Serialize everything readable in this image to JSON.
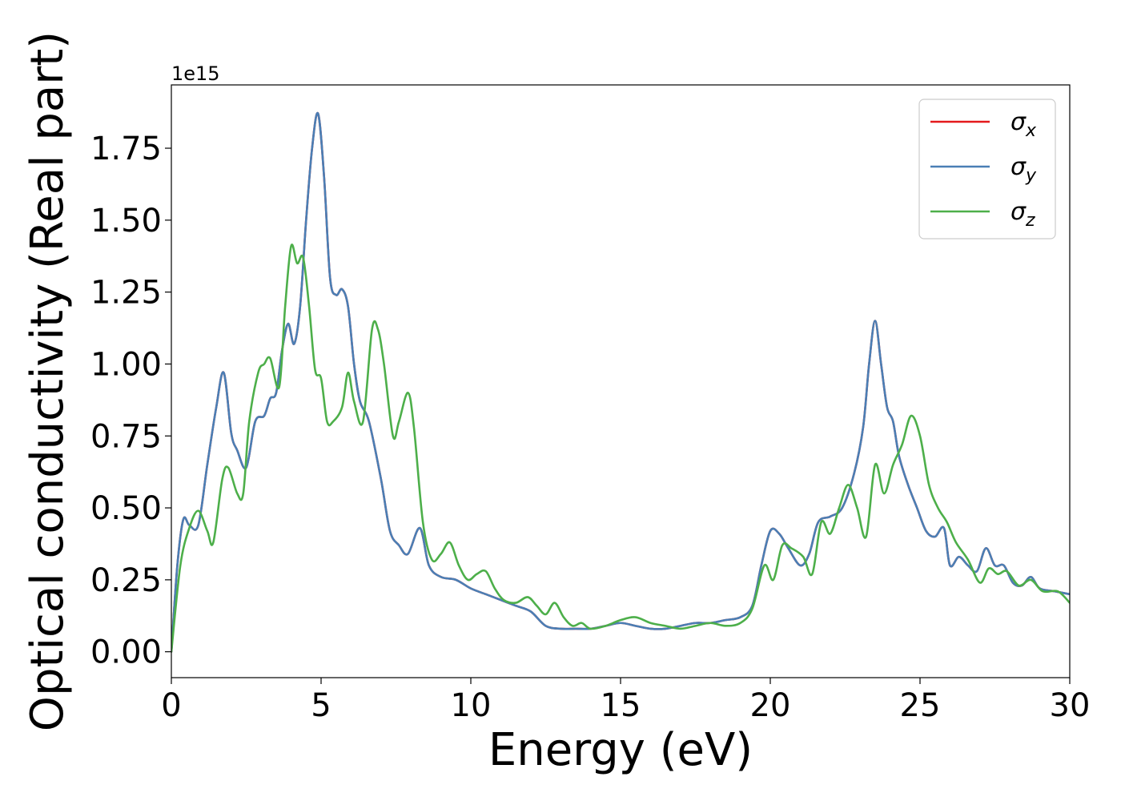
{
  "chart_data": {
    "type": "line",
    "xlabel": "Energy (eV)",
    "ylabel": "Optical conductivity (Real part)",
    "y_offset_label": "1e15",
    "xlim": [
      0,
      30
    ],
    "ylim": [
      -0.09,
      1.97
    ],
    "x_ticks": [
      0,
      5,
      10,
      15,
      20,
      25,
      30
    ],
    "x_tick_labels": [
      "0",
      "5",
      "10",
      "15",
      "20",
      "25",
      "30"
    ],
    "y_ticks": [
      0,
      0.25,
      0.5,
      0.75,
      1.0,
      1.25,
      1.5,
      1.75
    ],
    "y_tick_labels": [
      "0.00",
      "0.25",
      "0.50",
      "0.75",
      "1.00",
      "1.25",
      "1.50",
      "1.75"
    ],
    "grid": false,
    "legend_position": "top-right",
    "series": [
      {
        "name": "σx",
        "label_base": "σ",
        "label_sub": "x",
        "color": "#e41a1c",
        "x": [
          0,
          0.2,
          0.4,
          0.6,
          0.9,
          1.2,
          1.5,
          1.75,
          2.0,
          2.2,
          2.5,
          2.8,
          3.1,
          3.3,
          3.5,
          3.7,
          3.9,
          4.1,
          4.3,
          4.5,
          4.7,
          4.9,
          5.1,
          5.3,
          5.5,
          5.7,
          5.9,
          6.1,
          6.3,
          6.6,
          7.0,
          7.3,
          7.6,
          7.9,
          8.3,
          8.6,
          9.0,
          9.5,
          10.0,
          10.5,
          11.0,
          11.5,
          12.0,
          12.5,
          13.0,
          13.5,
          14.0,
          14.5,
          15.0,
          15.5,
          16.0,
          16.5,
          17.0,
          17.5,
          18.0,
          18.5,
          19.0,
          19.4,
          19.7,
          20.0,
          20.3,
          20.6,
          21.0,
          21.3,
          21.6,
          22.0,
          22.4,
          22.8,
          23.1,
          23.3,
          23.5,
          23.7,
          23.9,
          24.1,
          24.3,
          24.6,
          24.9,
          25.2,
          25.5,
          25.8,
          26.0,
          26.3,
          26.6,
          26.9,
          27.2,
          27.5,
          27.8,
          28.1,
          28.4,
          28.7,
          29.0,
          29.5,
          30.0
        ],
        "values": [
          0.0,
          0.3,
          0.46,
          0.44,
          0.44,
          0.65,
          0.85,
          0.97,
          0.76,
          0.7,
          0.64,
          0.8,
          0.82,
          0.88,
          0.9,
          1.05,
          1.14,
          1.07,
          1.2,
          1.5,
          1.75,
          1.87,
          1.65,
          1.3,
          1.24,
          1.26,
          1.2,
          1.0,
          0.87,
          0.8,
          0.6,
          0.42,
          0.37,
          0.34,
          0.43,
          0.3,
          0.26,
          0.25,
          0.22,
          0.2,
          0.18,
          0.16,
          0.14,
          0.09,
          0.08,
          0.08,
          0.08,
          0.09,
          0.1,
          0.09,
          0.08,
          0.08,
          0.09,
          0.1,
          0.1,
          0.11,
          0.12,
          0.16,
          0.3,
          0.42,
          0.41,
          0.36,
          0.3,
          0.34,
          0.45,
          0.47,
          0.5,
          0.62,
          0.78,
          1.0,
          1.15,
          1.0,
          0.85,
          0.8,
          0.68,
          0.58,
          0.5,
          0.42,
          0.4,
          0.43,
          0.3,
          0.33,
          0.3,
          0.28,
          0.36,
          0.3,
          0.3,
          0.24,
          0.23,
          0.26,
          0.22,
          0.21,
          0.2
        ]
      },
      {
        "name": "σy",
        "label_base": "σ",
        "label_sub": "y",
        "color": "#4a7fb5",
        "x": [
          0,
          0.2,
          0.4,
          0.6,
          0.9,
          1.2,
          1.5,
          1.75,
          2.0,
          2.2,
          2.5,
          2.8,
          3.1,
          3.3,
          3.5,
          3.7,
          3.9,
          4.1,
          4.3,
          4.5,
          4.7,
          4.9,
          5.1,
          5.3,
          5.5,
          5.7,
          5.9,
          6.1,
          6.3,
          6.6,
          7.0,
          7.3,
          7.6,
          7.9,
          8.3,
          8.6,
          9.0,
          9.5,
          10.0,
          10.5,
          11.0,
          11.5,
          12.0,
          12.5,
          13.0,
          13.5,
          14.0,
          14.5,
          15.0,
          15.5,
          16.0,
          16.5,
          17.0,
          17.5,
          18.0,
          18.5,
          19.0,
          19.4,
          19.7,
          20.0,
          20.3,
          20.6,
          21.0,
          21.3,
          21.6,
          22.0,
          22.4,
          22.8,
          23.1,
          23.3,
          23.5,
          23.7,
          23.9,
          24.1,
          24.3,
          24.6,
          24.9,
          25.2,
          25.5,
          25.8,
          26.0,
          26.3,
          26.6,
          26.9,
          27.2,
          27.5,
          27.8,
          28.1,
          28.4,
          28.7,
          29.0,
          29.5,
          30.0
        ],
        "values": [
          0.0,
          0.3,
          0.46,
          0.44,
          0.44,
          0.65,
          0.85,
          0.97,
          0.76,
          0.7,
          0.64,
          0.8,
          0.82,
          0.88,
          0.9,
          1.05,
          1.14,
          1.07,
          1.2,
          1.5,
          1.75,
          1.87,
          1.65,
          1.3,
          1.24,
          1.26,
          1.2,
          1.0,
          0.87,
          0.8,
          0.6,
          0.42,
          0.37,
          0.34,
          0.43,
          0.3,
          0.26,
          0.25,
          0.22,
          0.2,
          0.18,
          0.16,
          0.14,
          0.09,
          0.08,
          0.08,
          0.08,
          0.09,
          0.1,
          0.09,
          0.08,
          0.08,
          0.09,
          0.1,
          0.1,
          0.11,
          0.12,
          0.16,
          0.3,
          0.42,
          0.41,
          0.36,
          0.3,
          0.34,
          0.45,
          0.47,
          0.5,
          0.62,
          0.78,
          1.0,
          1.15,
          1.0,
          0.85,
          0.8,
          0.68,
          0.58,
          0.5,
          0.42,
          0.4,
          0.43,
          0.3,
          0.33,
          0.3,
          0.28,
          0.36,
          0.3,
          0.3,
          0.24,
          0.23,
          0.26,
          0.22,
          0.21,
          0.2
        ]
      },
      {
        "name": "σz",
        "label_base": "σ",
        "label_sub": "z",
        "color": "#4daf4a",
        "x": [
          0,
          0.3,
          0.6,
          0.9,
          1.2,
          1.4,
          1.7,
          1.9,
          2.2,
          2.4,
          2.6,
          2.9,
          3.1,
          3.3,
          3.6,
          3.8,
          4.0,
          4.2,
          4.4,
          4.6,
          4.8,
          5.0,
          5.2,
          5.4,
          5.7,
          5.9,
          6.1,
          6.4,
          6.7,
          6.9,
          7.1,
          7.4,
          7.6,
          7.9,
          8.1,
          8.4,
          8.7,
          9.0,
          9.3,
          9.6,
          9.9,
          10.2,
          10.5,
          10.8,
          11.1,
          11.5,
          11.9,
          12.2,
          12.5,
          12.8,
          13.1,
          13.4,
          13.7,
          14.0,
          14.5,
          15.0,
          15.5,
          16.0,
          16.5,
          17.0,
          17.5,
          18.0,
          18.5,
          19.0,
          19.4,
          19.8,
          20.1,
          20.4,
          20.7,
          21.1,
          21.4,
          21.7,
          22.0,
          22.3,
          22.6,
          22.9,
          23.2,
          23.5,
          23.8,
          24.1,
          24.4,
          24.7,
          25.0,
          25.3,
          25.6,
          25.9,
          26.2,
          26.6,
          27.0,
          27.3,
          27.6,
          27.9,
          28.3,
          28.7,
          29.1,
          29.6,
          30.0
        ],
        "values": [
          0.0,
          0.3,
          0.43,
          0.49,
          0.42,
          0.38,
          0.6,
          0.64,
          0.55,
          0.55,
          0.8,
          0.97,
          1.0,
          1.02,
          0.92,
          1.2,
          1.41,
          1.35,
          1.37,
          1.2,
          0.98,
          0.95,
          0.8,
          0.8,
          0.85,
          0.97,
          0.87,
          0.8,
          1.12,
          1.12,
          1.0,
          0.75,
          0.8,
          0.9,
          0.78,
          0.45,
          0.32,
          0.34,
          0.38,
          0.3,
          0.25,
          0.27,
          0.28,
          0.22,
          0.18,
          0.17,
          0.19,
          0.16,
          0.13,
          0.17,
          0.12,
          0.09,
          0.1,
          0.08,
          0.09,
          0.11,
          0.12,
          0.1,
          0.09,
          0.08,
          0.09,
          0.1,
          0.09,
          0.1,
          0.15,
          0.3,
          0.25,
          0.37,
          0.36,
          0.33,
          0.27,
          0.45,
          0.41,
          0.5,
          0.58,
          0.5,
          0.4,
          0.65,
          0.55,
          0.65,
          0.72,
          0.82,
          0.75,
          0.58,
          0.5,
          0.45,
          0.38,
          0.32,
          0.24,
          0.29,
          0.27,
          0.28,
          0.23,
          0.25,
          0.21,
          0.21,
          0.17
        ]
      }
    ]
  }
}
